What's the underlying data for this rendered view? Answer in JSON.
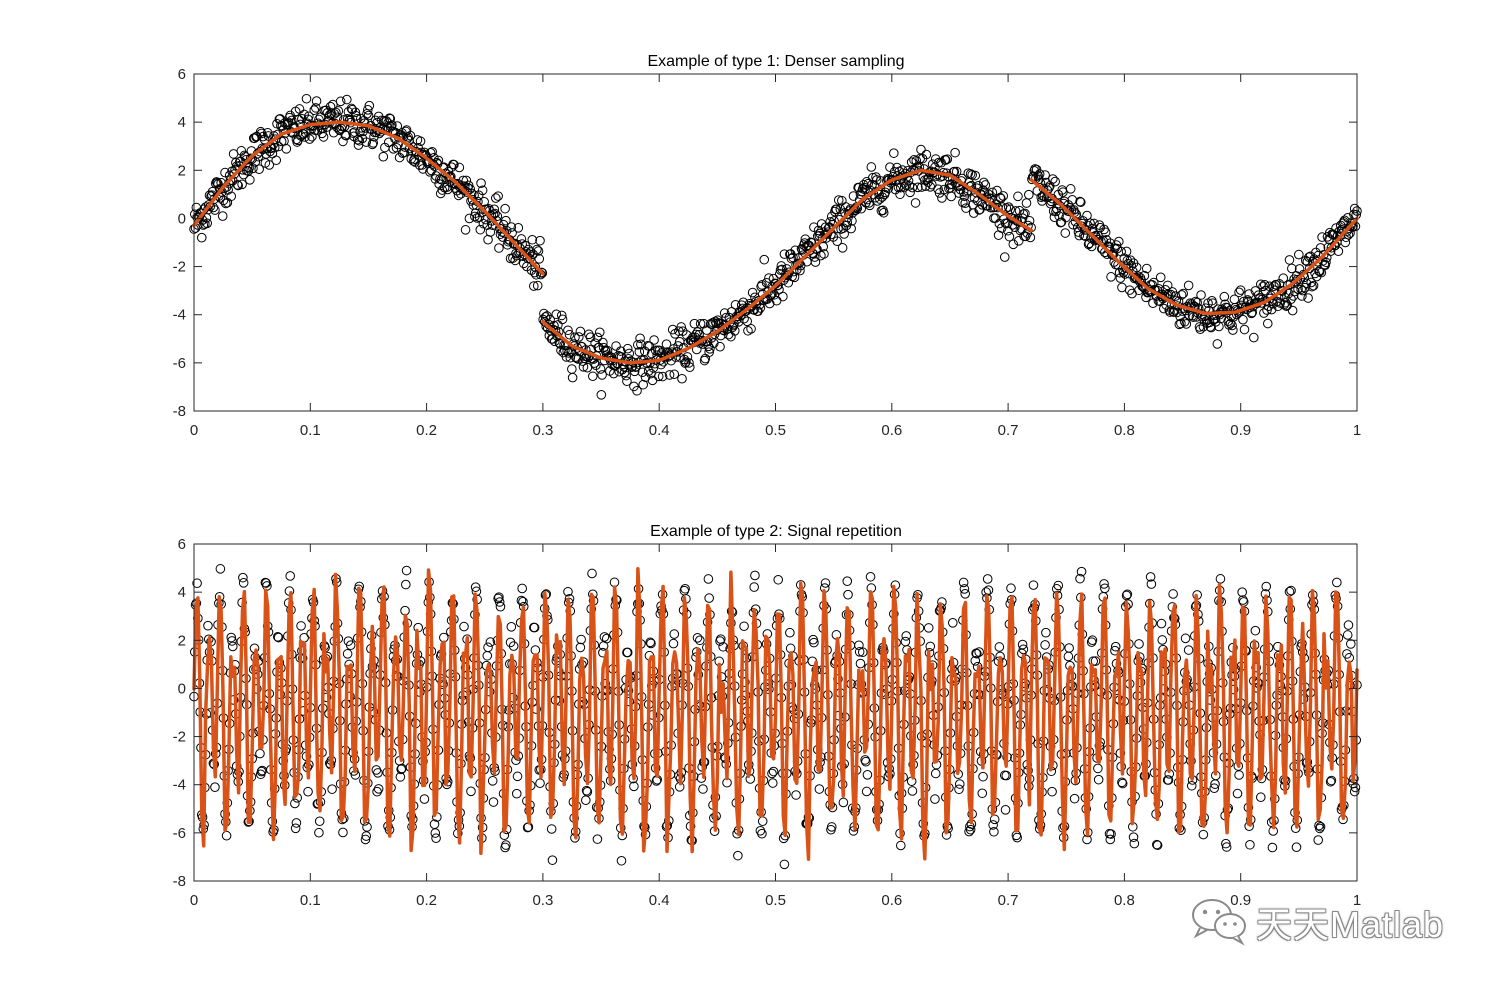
{
  "chart_data": [
    {
      "type": "scatter",
      "title": "Example of type 1: Denser sampling",
      "xlabel": "",
      "ylabel": "",
      "xlim": [
        0,
        1
      ],
      "ylim": [
        -8,
        6
      ],
      "xticks": [
        0,
        0.1,
        0.2,
        0.3,
        0.4,
        0.5,
        0.6,
        0.7,
        0.8,
        0.9,
        1
      ],
      "xtick_labels": [
        "0",
        "0.1",
        "0.2",
        "0.3",
        "0.4",
        "0.5",
        "0.6",
        "0.7",
        "0.8",
        "0.9",
        "1"
      ],
      "yticks": [
        -8,
        -6,
        -4,
        -2,
        0,
        2,
        4,
        6
      ],
      "ytick_labels": [
        "-8",
        "-6",
        "-4",
        "-2",
        "0",
        "2",
        "4",
        "6"
      ],
      "grid": false,
      "legend": "none",
      "n_samples": 1500,
      "noise_sd": 0.45,
      "fit_color": "#D95319",
      "marker_color": "#000000",
      "marker": "open-circle",
      "fit_curve": {
        "segments": [
          {
            "x": [
              0,
              0.025,
              0.05,
              0.075,
              0.1,
              0.125,
              0.15,
              0.175,
              0.2,
              0.225,
              0.25,
              0.275,
              0.3
            ],
            "y": [
              -0.3,
              1.3,
              2.6,
              3.5,
              3.9,
              4.0,
              3.85,
              3.35,
              2.5,
              1.5,
              0.3,
              -1.0,
              -2.3
            ]
          },
          {
            "x": [
              0.3,
              0.325,
              0.35,
              0.375,
              0.4,
              0.425,
              0.45,
              0.475,
              0.5,
              0.525,
              0.55,
              0.575,
              0.6,
              0.625,
              0.65,
              0.675,
              0.7,
              0.72
            ],
            "y": [
              -4.3,
              -5.3,
              -5.8,
              -6.0,
              -5.9,
              -5.4,
              -4.7,
              -3.8,
              -2.8,
              -1.6,
              -0.4,
              0.8,
              1.6,
              2.0,
              1.8,
              1.0,
              0.1,
              -0.5
            ]
          },
          {
            "x": [
              0.72,
              0.745,
              0.77,
              0.795,
              0.82,
              0.845,
              0.87,
              0.895,
              0.92,
              0.945,
              0.97,
              1.0
            ],
            "y": [
              1.6,
              0.6,
              -0.6,
              -1.8,
              -2.9,
              -3.6,
              -3.95,
              -3.9,
              -3.5,
              -2.7,
              -1.6,
              0.0
            ]
          }
        ]
      }
    },
    {
      "type": "scatter",
      "title": "Example of type 2: Signal repetition",
      "xlabel": "",
      "ylabel": "",
      "xlim": [
        0,
        1
      ],
      "ylim": [
        -8,
        6
      ],
      "xticks": [
        0,
        0.1,
        0.2,
        0.3,
        0.4,
        0.5,
        0.6,
        0.7,
        0.8,
        0.9,
        1
      ],
      "xtick_labels": [
        "0",
        "0.1",
        "0.2",
        "0.3",
        "0.4",
        "0.5",
        "0.6",
        "0.7",
        "0.8",
        "0.9",
        "1"
      ],
      "yticks": [
        -8,
        -6,
        -4,
        -2,
        0,
        2,
        4,
        6
      ],
      "ytick_labels": [
        "-8",
        "-6",
        "-4",
        "-2",
        "0",
        "2",
        "4",
        "6"
      ],
      "grid": false,
      "legend": "none",
      "n_samples": 1500,
      "noise_sd": 0.45,
      "fit_color": "#D95319",
      "marker_color": "#000000",
      "marker": "open-circle",
      "repetitions": 50,
      "base_shape_y": [
        -0.3,
        1.3,
        2.6,
        3.5,
        3.9,
        4.0,
        3.85,
        3.35,
        2.5,
        1.5,
        0.3,
        -1.0,
        -2.3,
        -4.3,
        -5.3,
        -5.8,
        -6.0,
        -5.9,
        -5.4,
        -4.7,
        -3.8,
        -2.8,
        -1.6,
        -0.4,
        0.8,
        1.6,
        2.0,
        1.8,
        1.0,
        0.1,
        -0.5,
        1.6,
        0.6,
        -0.6,
        -1.8,
        -2.9,
        -3.6,
        -3.95,
        -3.9,
        -3.5,
        -2.7,
        -1.6,
        0.0
      ]
    }
  ],
  "watermark": {
    "text": "天天Matlab",
    "icon": "wechat-icon"
  }
}
